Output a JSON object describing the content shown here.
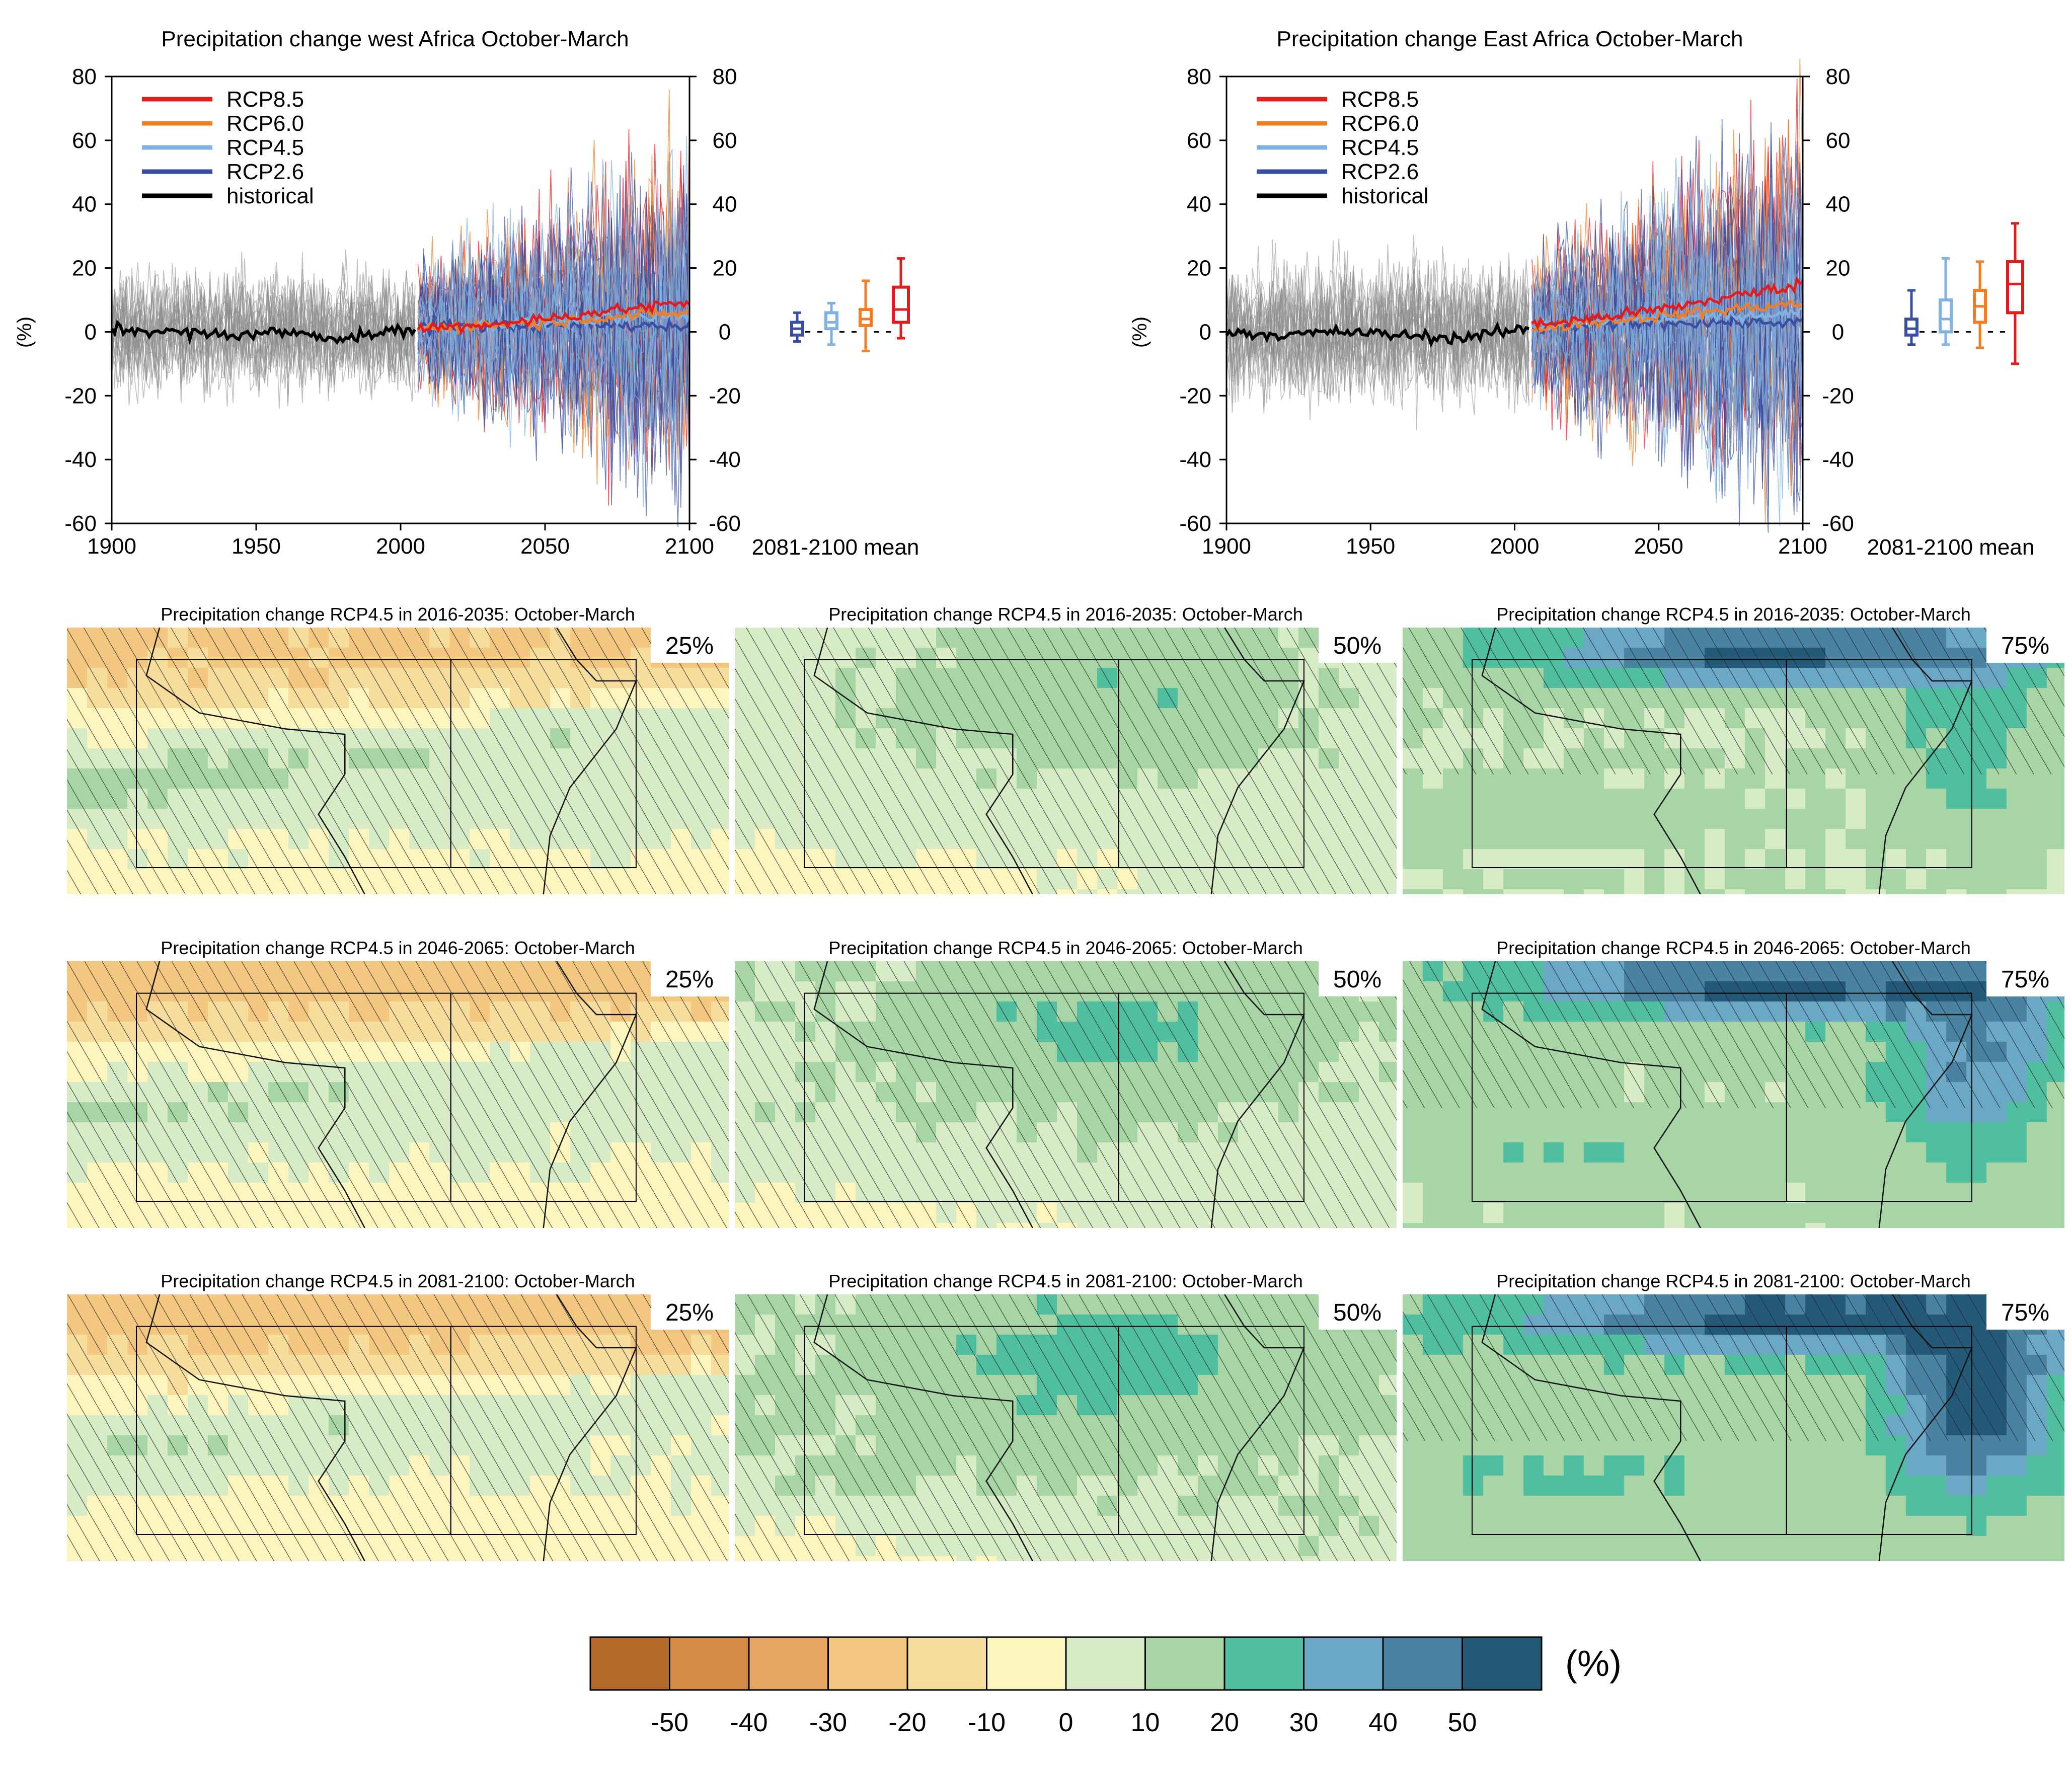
{
  "colors": {
    "rcp85": "#e41a1c",
    "rcp60": "#f07e26",
    "rcp45": "#7fb2e0",
    "rcp26": "#3a4ea3",
    "historical": "#000000",
    "ensemble": "#8c8c8c"
  },
  "chart_data": [
    {
      "type": "line",
      "title": "Precipitation change west Africa October-March",
      "ylabel": "(%)",
      "xlim": [
        1900,
        2100
      ],
      "ylim": [
        -60,
        80
      ],
      "x_ticks": [
        "1900",
        "1950",
        "2000",
        "2050",
        "2100"
      ],
      "y_ticks_left": [
        "80",
        "60",
        "40",
        "20",
        "0",
        "-20",
        "-40",
        "-60"
      ],
      "y_ticks_right": [
        "80",
        "60",
        "40",
        "20",
        "0",
        "-20",
        "-40",
        "-60"
      ],
      "legend_position": "top-left",
      "legend": [
        "RCP8.5",
        "RCP6.0",
        "RCP4.5",
        "RCP2.6",
        "historical"
      ],
      "series": [
        {
          "name": "historical",
          "x": [
            1900,
            1920,
            1940,
            1960,
            1980,
            2005
          ],
          "values": [
            1,
            0,
            -1,
            0,
            -2,
            1
          ]
        },
        {
          "name": "RCP2.6",
          "x": [
            2006,
            2025,
            2050,
            2075,
            2100
          ],
          "values": [
            1,
            2,
            2,
            2,
            2
          ]
        },
        {
          "name": "RCP4.5",
          "x": [
            2006,
            2025,
            2050,
            2075,
            2100
          ],
          "values": [
            1,
            2,
            3,
            4,
            5
          ]
        },
        {
          "name": "RCP6.0",
          "x": [
            2006,
            2025,
            2050,
            2075,
            2100
          ],
          "values": [
            1,
            2,
            3,
            5,
            6
          ]
        },
        {
          "name": "RCP8.5",
          "x": [
            2006,
            2025,
            2050,
            2075,
            2100
          ],
          "values": [
            1,
            2,
            4,
            7,
            9
          ]
        }
      ],
      "boxplot_label": "2081-2100 mean",
      "boxplots": [
        {
          "name": "RCP2.6",
          "min": -3,
          "q1": -1,
          "median": 1,
          "q3": 3,
          "max": 6
        },
        {
          "name": "RCP4.5",
          "min": -4,
          "q1": 1,
          "median": 3,
          "q3": 6,
          "max": 9
        },
        {
          "name": "RCP6.0",
          "min": -6,
          "q1": 2,
          "median": 4,
          "q3": 7,
          "max": 16
        },
        {
          "name": "RCP8.5",
          "min": -2,
          "q1": 3,
          "median": 7,
          "q3": 14,
          "max": 23
        }
      ]
    },
    {
      "type": "line",
      "title": "Precipitation change East Africa October-March",
      "ylabel": "(%)",
      "xlim": [
        1900,
        2100
      ],
      "ylim": [
        -60,
        80
      ],
      "x_ticks": [
        "1900",
        "1950",
        "2000",
        "2050",
        "2100"
      ],
      "y_ticks_left": [
        "80",
        "60",
        "40",
        "20",
        "0",
        "-20",
        "-40",
        "-60"
      ],
      "y_ticks_right": [
        "80",
        "60",
        "40",
        "20",
        "0",
        "-20",
        "-40",
        "-60"
      ],
      "legend_position": "top-left",
      "legend": [
        "RCP8.5",
        "RCP6.0",
        "RCP4.5",
        "RCP2.6",
        "historical"
      ],
      "series": [
        {
          "name": "historical",
          "x": [
            1900,
            1920,
            1940,
            1960,
            1980,
            2005
          ],
          "values": [
            0,
            -1,
            0,
            -1,
            -2,
            1
          ]
        },
        {
          "name": "RCP2.6",
          "x": [
            2006,
            2025,
            2050,
            2075,
            2100
          ],
          "values": [
            1,
            2,
            3,
            3,
            3
          ]
        },
        {
          "name": "RCP4.5",
          "x": [
            2006,
            2025,
            2050,
            2075,
            2100
          ],
          "values": [
            1,
            3,
            4,
            5,
            6
          ]
        },
        {
          "name": "RCP6.0",
          "x": [
            2006,
            2025,
            2050,
            2075,
            2100
          ],
          "values": [
            1,
            3,
            5,
            7,
            9
          ]
        },
        {
          "name": "RCP8.5",
          "x": [
            2006,
            2025,
            2050,
            2075,
            2100
          ],
          "values": [
            2,
            4,
            7,
            11,
            15
          ]
        }
      ],
      "boxplot_label": "2081-2100 mean",
      "boxplots": [
        {
          "name": "RCP2.6",
          "min": -4,
          "q1": -1,
          "median": 1,
          "q3": 4,
          "max": 13
        },
        {
          "name": "RCP4.5",
          "min": -4,
          "q1": 0,
          "median": 4,
          "q3": 10,
          "max": 23
        },
        {
          "name": "RCP6.0",
          "min": -5,
          "q1": 3,
          "median": 8,
          "q3": 13,
          "max": 22
        },
        {
          "name": "RCP8.5",
          "min": -10,
          "q1": 6,
          "median": 15,
          "q3": 22,
          "max": 34
        }
      ]
    },
    {
      "type": "heatmap",
      "maps": [
        {
          "title": "Precipitation change RCP4.5 in 2016-2035: October-March",
          "percentile": "25%",
          "level": 0
        },
        {
          "title": "Precipitation change RCP4.5 in 2016-2035: October-March",
          "percentile": "50%",
          "level": 1
        },
        {
          "title": "Precipitation change RCP4.5 in 2016-2035: October-March",
          "percentile": "75%",
          "level": 2
        },
        {
          "title": "Precipitation change RCP4.5 in 2046-2065: October-March",
          "percentile": "25%",
          "level": 0
        },
        {
          "title": "Precipitation change RCP4.5 in 2046-2065: October-March",
          "percentile": "50%",
          "level": 1
        },
        {
          "title": "Precipitation change RCP4.5 in 2046-2065: October-March",
          "percentile": "75%",
          "level": 2
        },
        {
          "title": "Precipitation change RCP4.5 in 2081-2100: October-March",
          "percentile": "25%",
          "level": 0
        },
        {
          "title": "Precipitation change RCP4.5 in 2081-2100: October-March",
          "percentile": "50%",
          "level": 1
        },
        {
          "title": "Precipitation change RCP4.5 in 2081-2100: October-March",
          "percentile": "75%",
          "level": 2
        }
      ],
      "colorbar": {
        "unit": "(%)",
        "ticks": [
          "-50",
          "-40",
          "-30",
          "-20",
          "-10",
          "0",
          "10",
          "20",
          "30",
          "40",
          "50"
        ],
        "colors": [
          "#b5692a",
          "#d38b45",
          "#e6a563",
          "#f3c77f",
          "#f7dd9b",
          "#fdf5be",
          "#d6ebc6",
          "#a8d5a6",
          "#4fbf9f",
          "#6aa8c6",
          "#4983a1",
          "#245a78"
        ]
      }
    }
  ]
}
